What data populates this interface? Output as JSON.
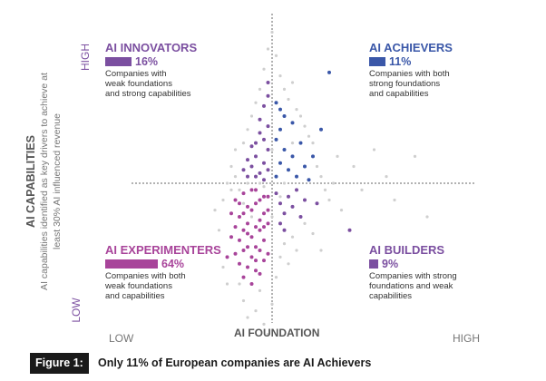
{
  "colors": {
    "experimenters": "#a8449a",
    "innovators": "#7b4fa0",
    "achievers": "#3a57a8",
    "builders": "#7b4fa0",
    "other": "#cfcfcf",
    "axis": "#555555"
  },
  "chart_data": {
    "type": "scatter",
    "xlabel": "AI FOUNDATION",
    "ylabel": "AI CAPABILITIES",
    "ylabel_sub": [
      "AI capabilities identified as key drivers to achieve at",
      "least 30% AI influenced revenue"
    ],
    "x_ticks": [
      "LOW",
      "HIGH"
    ],
    "y_ticks": [
      "LOW",
      "HIGH"
    ],
    "xlim": [
      0,
      100
    ],
    "ylim": [
      0,
      100
    ],
    "thresholds": {
      "x": 50,
      "y": 50
    },
    "grid": false,
    "quadrants": [
      {
        "key": "innovators",
        "name": "AI INNOVATORS",
        "percent": "16%",
        "value": 16,
        "desc": "Companies with\nweak foundations\nand strong capabilities"
      },
      {
        "key": "achievers",
        "name": "AI ACHIEVERS",
        "percent": "11%",
        "value": 11,
        "desc": "Companies with both\nstrong foundations\nand capabilities"
      },
      {
        "key": "experimenters",
        "name": "AI EXPERIMENTERS",
        "percent": "64%",
        "value": 64,
        "desc": "Companies with both\nweak foundations\nand capabilities"
      },
      {
        "key": "builders",
        "name": "AI BUILDERS",
        "percent": "9%",
        "value": 9,
        "desc": "Companies with strong\nfoundations and weak\ncapabilities"
      }
    ],
    "points": {
      "experimenters": [
        [
          41,
          45
        ],
        [
          42,
          40
        ],
        [
          43,
          47
        ],
        [
          44,
          38
        ],
        [
          45,
          42
        ],
        [
          46,
          44
        ],
        [
          47,
          36
        ],
        [
          48,
          41
        ],
        [
          49,
          46
        ],
        [
          42,
          33
        ],
        [
          43,
          30
        ],
        [
          44,
          35
        ],
        [
          45,
          28
        ],
        [
          46,
          31
        ],
        [
          47,
          39
        ],
        [
          48,
          33
        ],
        [
          49,
          29
        ],
        [
          41,
          37
        ],
        [
          42,
          26
        ],
        [
          43,
          22
        ],
        [
          44,
          43
        ],
        [
          45,
          48
        ],
        [
          46,
          37
        ],
        [
          47,
          45
        ],
        [
          48,
          27
        ],
        [
          49,
          38
        ],
        [
          40,
          34
        ],
        [
          41,
          29
        ],
        [
          44,
          25
        ],
        [
          46,
          24
        ],
        [
          47,
          30
        ],
        [
          48,
          46
        ],
        [
          45,
          34
        ],
        [
          43,
          36
        ],
        [
          49,
          42
        ],
        [
          46,
          48
        ],
        [
          42,
          44
        ],
        [
          44,
          31
        ],
        [
          47,
          23
        ],
        [
          45,
          20
        ],
        [
          39,
          28
        ],
        [
          40,
          41
        ],
        [
          48,
          37
        ],
        [
          43,
          41
        ],
        [
          46,
          27
        ]
      ],
      "innovators": [
        [
          44,
          52
        ],
        [
          45,
          55
        ],
        [
          46,
          58
        ],
        [
          47,
          53
        ],
        [
          48,
          56
        ],
        [
          49,
          60
        ],
        [
          46,
          62
        ],
        [
          47,
          65
        ],
        [
          48,
          51
        ],
        [
          49,
          54
        ],
        [
          45,
          61
        ],
        [
          44,
          57
        ],
        [
          47,
          69
        ],
        [
          48,
          73
        ],
        [
          49,
          76
        ],
        [
          49,
          80
        ],
        [
          43,
          54
        ],
        [
          46,
          52
        ],
        [
          48,
          63
        ],
        [
          49,
          67
        ]
      ],
      "achievers": [
        [
          51,
          52
        ],
        [
          52,
          56
        ],
        [
          53,
          60
        ],
        [
          54,
          54
        ],
        [
          55,
          58
        ],
        [
          51,
          63
        ],
        [
          52,
          66
        ],
        [
          53,
          70
        ],
        [
          56,
          52
        ],
        [
          57,
          62
        ],
        [
          58,
          55
        ],
        [
          51,
          74
        ],
        [
          52,
          72
        ],
        [
          60,
          58
        ],
        [
          62,
          66
        ],
        [
          64,
          83
        ],
        [
          55,
          68
        ],
        [
          59,
          51
        ]
      ],
      "builders": [
        [
          51,
          47
        ],
        [
          52,
          44
        ],
        [
          53,
          41
        ],
        [
          54,
          46
        ],
        [
          55,
          43
        ],
        [
          56,
          48
        ],
        [
          52,
          38
        ],
        [
          53,
          36
        ],
        [
          58,
          45
        ],
        [
          61,
          44
        ],
        [
          69,
          36
        ],
        [
          57,
          40
        ]
      ],
      "other": [
        [
          38,
          45
        ],
        [
          39,
          50
        ],
        [
          40,
          55
        ],
        [
          41,
          60
        ],
        [
          42,
          48
        ],
        [
          43,
          62
        ],
        [
          44,
          66
        ],
        [
          45,
          70
        ],
        [
          46,
          74
        ],
        [
          47,
          78
        ],
        [
          48,
          84
        ],
        [
          49,
          90
        ],
        [
          50,
          95
        ],
        [
          51,
          88
        ],
        [
          52,
          82
        ],
        [
          53,
          78
        ],
        [
          54,
          75
        ],
        [
          55,
          80
        ],
        [
          56,
          72
        ],
        [
          57,
          70
        ],
        [
          58,
          67
        ],
        [
          59,
          64
        ],
        [
          60,
          62
        ],
        [
          61,
          55
        ],
        [
          62,
          52
        ],
        [
          63,
          48
        ],
        [
          64,
          45
        ],
        [
          65,
          50
        ],
        [
          66,
          58
        ],
        [
          67,
          42
        ],
        [
          70,
          55
        ],
        [
          72,
          48
        ],
        [
          75,
          60
        ],
        [
          78,
          52
        ],
        [
          80,
          45
        ],
        [
          85,
          58
        ],
        [
          88,
          40
        ],
        [
          42,
          20
        ],
        [
          43,
          15
        ],
        [
          44,
          10
        ],
        [
          46,
          12
        ],
        [
          47,
          18
        ],
        [
          48,
          8
        ],
        [
          49,
          5
        ],
        [
          50,
          14
        ],
        [
          51,
          22
        ],
        [
          52,
          28
        ],
        [
          53,
          32
        ],
        [
          54,
          26
        ],
        [
          55,
          34
        ],
        [
          56,
          30
        ],
        [
          58,
          38
        ],
        [
          60,
          35
        ],
        [
          62,
          30
        ],
        [
          37,
          36
        ],
        [
          38,
          25
        ],
        [
          39,
          20
        ],
        [
          40,
          48
        ],
        [
          41,
          52
        ],
        [
          36,
          42
        ],
        [
          44,
          50
        ],
        [
          47,
          50
        ],
        [
          50,
          40
        ],
        [
          50,
          60
        ],
        [
          53,
          50
        ],
        [
          45,
          40
        ],
        [
          43,
          44
        ],
        [
          48,
          49
        ],
        [
          52,
          46
        ],
        [
          55,
          62
        ]
      ]
    }
  },
  "caption": {
    "label": "Figure 1:",
    "title": "Only 11% of European companies are AI Achievers"
  }
}
